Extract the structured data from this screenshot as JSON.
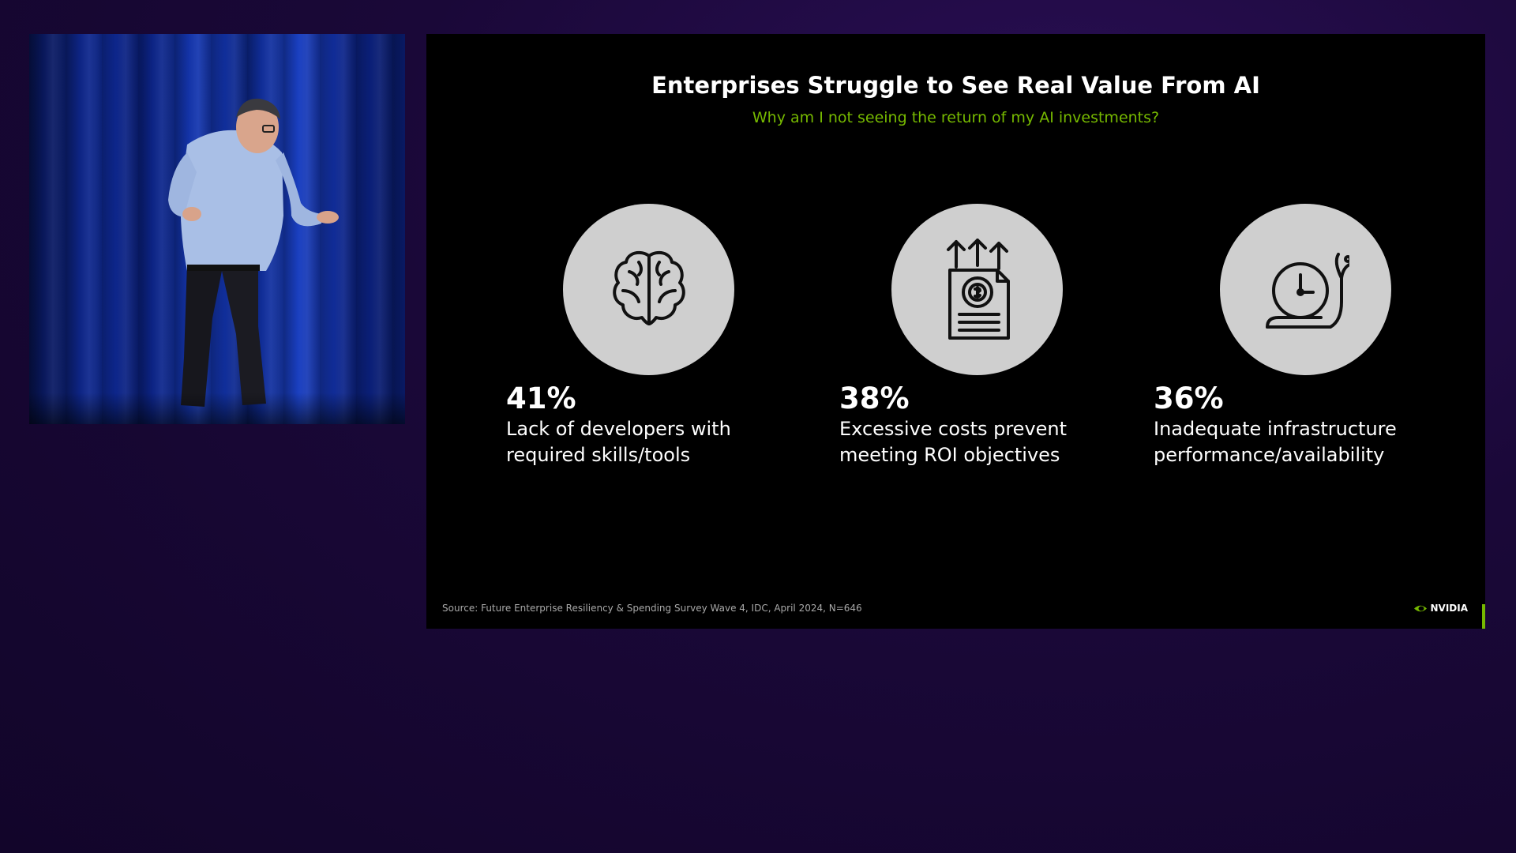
{
  "slide": {
    "title": "Enterprises Struggle to See Real Value From AI",
    "subtitle": "Why am I not seeing the return of my AI investments?",
    "stats": [
      {
        "icon": "brain-icon",
        "value": "41%",
        "label": "Lack of developers with required skills/tools"
      },
      {
        "icon": "cost-report-icon",
        "value": "38%",
        "label": "Excessive costs prevent meeting ROI objectives"
      },
      {
        "icon": "clock-snail-icon",
        "value": "36%",
        "label": "Inadequate infrastructure performance/availability"
      }
    ],
    "source": "Source: Future Enterprise Resiliency & Spending Survey Wave 4, IDC, April 2024, N=646",
    "brand": "NVIDIA"
  },
  "colors": {
    "accent": "#76b900",
    "background": "#1a0838",
    "slide_background": "#000000",
    "circle": "#cfcfcf"
  }
}
